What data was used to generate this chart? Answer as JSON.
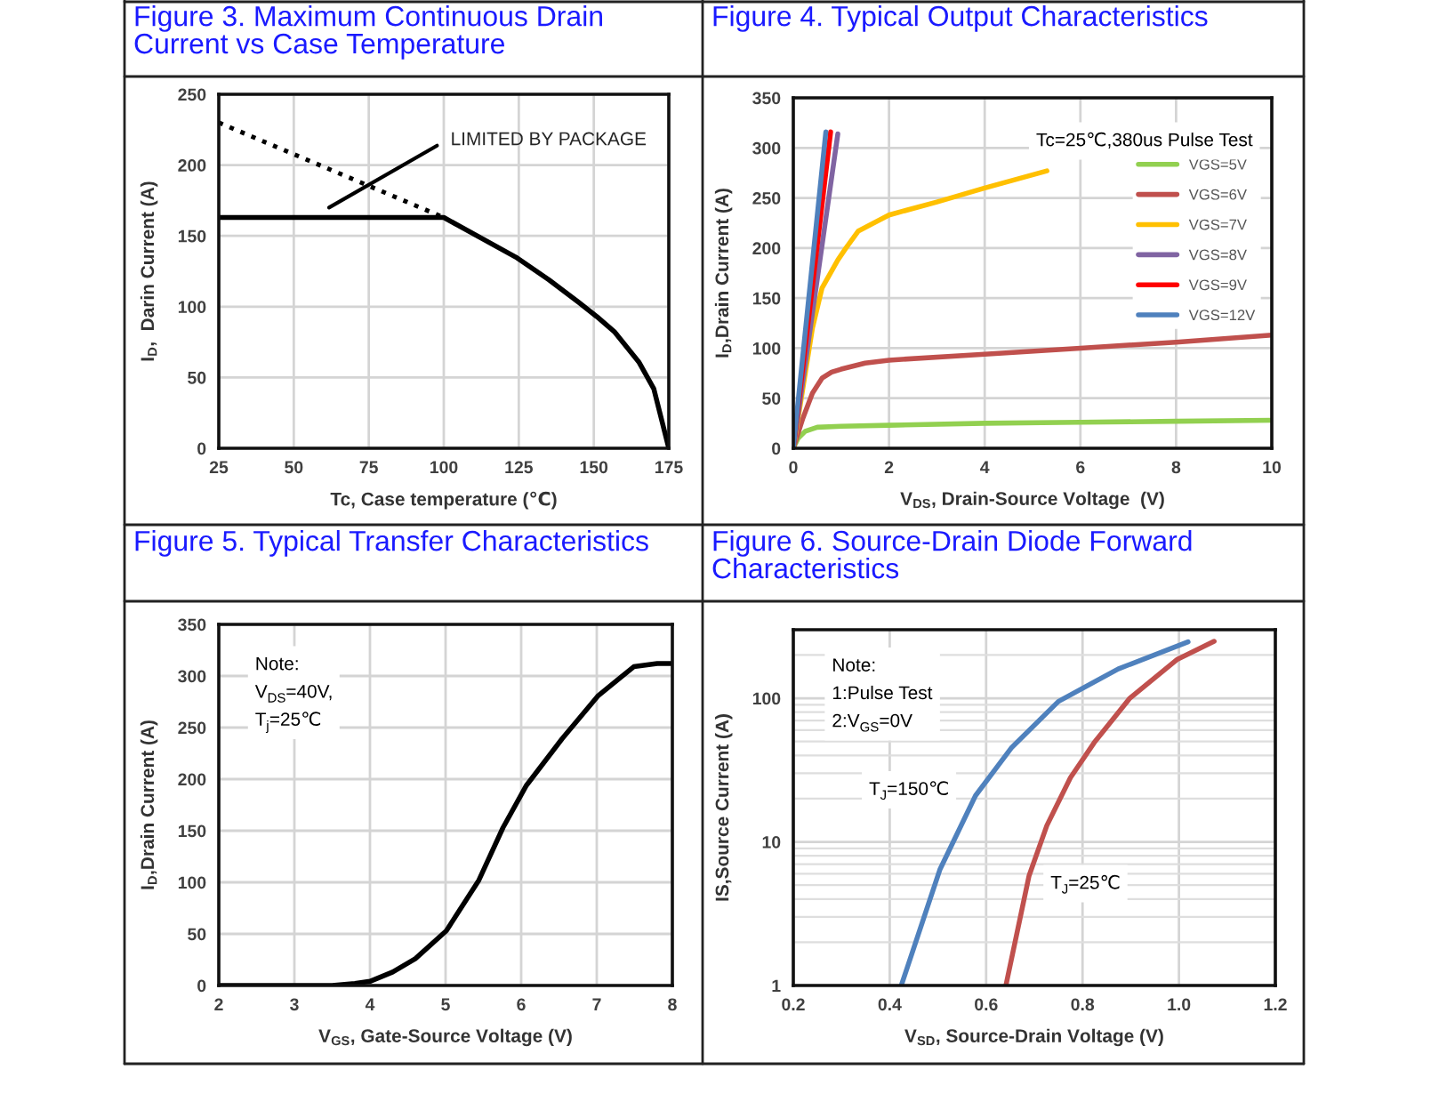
{
  "chart_data": [
    {
      "type": "line",
      "title": "Figure 3. Maximum Continuous Drain Current vs Case Temperature",
      "xlabel": "Tc, Case temperature (℃)",
      "ylabel": "I$_{D}$,  Darin Current (A)",
      "series": [
        {
          "color": "#000000",
          "line_style": "solid",
          "x": [
            25,
            100,
            124,
            135,
            145,
            151,
            157,
            165,
            170,
            175
          ],
          "values": [
            163,
            163,
            135,
            119,
            103,
            93,
            82,
            61,
            42,
            0
          ]
        },
        {
          "color": "#000000",
          "line_style": "dotted",
          "x": [
            25,
            100
          ],
          "values": [
            230,
            163
          ]
        }
      ],
      "annotations": [
        "LIMITED BY PACKAGE"
      ],
      "xlim": [
        25,
        175
      ],
      "xticks": [
        25,
        50,
        75,
        100,
        125,
        150,
        175
      ],
      "ylim": [
        0,
        250
      ],
      "yticks": [
        0,
        50,
        100,
        150,
        200,
        250
      ],
      "grid": true
    },
    {
      "type": "line",
      "title": "Figure 4. Typical Output Characteristics",
      "xlabel": "V$_{DS}$, Drain-Source Voltage  (V)",
      "ylabel": "I$_{D}$,Drain Current (A)",
      "series": [
        {
          "name": "VGS=5V",
          "color": "#92d050",
          "x": [
            0,
            0.1,
            0.25,
            0.5,
            1,
            2,
            4,
            6,
            8,
            10
          ],
          "values": [
            0,
            10,
            17,
            21,
            22,
            23,
            25,
            26,
            27,
            28
          ]
        },
        {
          "name": "VGS=6V",
          "color": "#c0504d",
          "x": [
            0,
            0.2,
            0.4,
            0.6,
            0.8,
            1,
            1.5,
            2,
            4,
            6,
            8,
            10
          ],
          "values": [
            0,
            30,
            55,
            70,
            76,
            79,
            85,
            88,
            94,
            100,
            106,
            113
          ]
        },
        {
          "name": "VGS=7V",
          "color": "#ffc000",
          "x": [
            0,
            0.2,
            0.4,
            0.6,
            0.93,
            1.1,
            1.36,
            2,
            3,
            4,
            5.3
          ],
          "values": [
            0,
            60,
            120,
            160,
            188,
            200,
            217,
            233,
            246,
            260,
            277
          ]
        },
        {
          "name": "VGS=8V",
          "color": "#8064a2",
          "x": [
            0,
            0.93
          ],
          "values": [
            0,
            314
          ]
        },
        {
          "name": "VGS=9V",
          "color": "#ff0000",
          "x": [
            0,
            0.78
          ],
          "values": [
            0,
            316
          ]
        },
        {
          "name": "VGS=12V",
          "color": "#4f81bd",
          "x": [
            0,
            0.68
          ],
          "values": [
            0,
            316
          ]
        }
      ],
      "annotations": [
        "Tc=25℃,380us Pulse Test"
      ],
      "legend": "top right",
      "xlim": [
        0,
        10
      ],
      "xticks": [
        0,
        2,
        4,
        6,
        8,
        10
      ],
      "ylim": [
        0,
        350
      ],
      "yticks": [
        0,
        50,
        100,
        150,
        200,
        250,
        300,
        350
      ],
      "grid": true
    },
    {
      "type": "line",
      "title": "Figure 5. Typical Transfer Characteristics",
      "xlabel": "V$_{GS}$, Gate-Source Voltage (V)",
      "ylabel": "I$_{D}$,Drain Current (A)",
      "series": [
        {
          "color": "#000000",
          "x": [
            2,
            3,
            3.5,
            3.8,
            4,
            4.3,
            4.6,
            5.01,
            5.44,
            5.76,
            6.07,
            6.54,
            7.02,
            7.49,
            7.8,
            8
          ],
          "values": [
            0,
            0,
            0,
            2,
            4,
            13,
            26,
            53,
            102,
            153,
            194,
            239,
            281,
            309,
            312,
            312
          ]
        }
      ],
      "annotations": [
        "Note:\nV$_{DS}$=40V,\nT$_{j}$=25℃"
      ],
      "xlim": [
        2,
        8
      ],
      "xticks": [
        2,
        3,
        4,
        5,
        6,
        7,
        8
      ],
      "ylim": [
        0,
        350
      ],
      "yticks": [
        0,
        50,
        100,
        150,
        200,
        250,
        300,
        350
      ],
      "grid": true
    },
    {
      "type": "line",
      "title": "Figure 6. Source-Drain Diode Forward Characteristics",
      "xlabel": "V$_{SD}$, Source-Drain Voltage (V)",
      "ylabel": "IS,Source Current (A)",
      "series": [
        {
          "color": "#4f81bd",
          "x": [
            0.424,
            0.504,
            0.578,
            0.652,
            0.75,
            0.874,
            1.019
          ],
          "values": [
            1,
            6.4,
            21,
            45,
            95,
            160,
            247
          ]
        },
        {
          "color": "#c0504d",
          "x": [
            0.641,
            0.689,
            0.726,
            0.775,
            0.824,
            0.898,
            0.997,
            1.073
          ],
          "values": [
            1,
            5.8,
            13,
            28,
            49,
            100,
            187,
            249
          ]
        }
      ],
      "annotations": [
        "Note:\n1:Pulse Test\n2:V$_{GS}$=0V",
        "T$_{J}$=150℃",
        "T$_{J}$=25℃"
      ],
      "log": "y",
      "xlim": [
        0.2,
        1.2
      ],
      "xticks": [
        0.2,
        0.4,
        0.6,
        0.8,
        {
          "value": 1,
          "label": "1.0"
        },
        1.2
      ],
      "ylim": [
        1,
        300
      ],
      "yticks": [
        1,
        10,
        100
      ],
      "grid": true
    }
  ]
}
